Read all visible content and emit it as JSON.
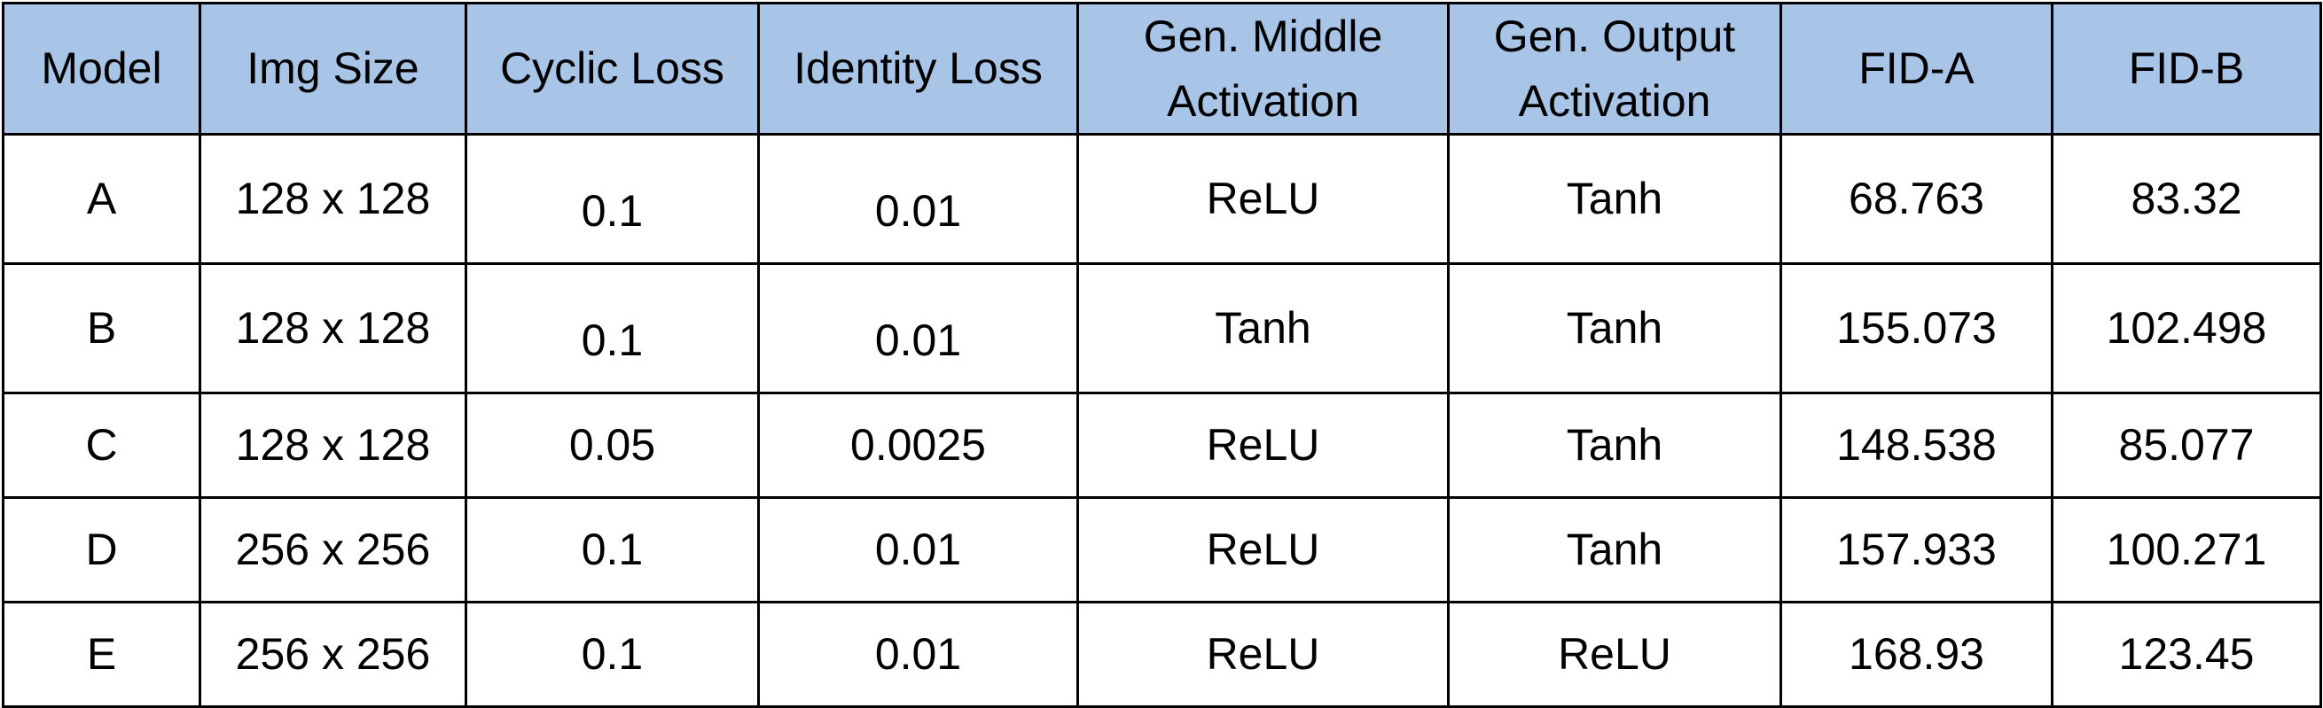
{
  "table": {
    "headers": [
      "Model",
      "Img Size",
      "Cyclic Loss",
      "Identity Loss",
      "Gen. Middle Activation",
      "Gen. Output Activation",
      "FID-A",
      "FID-B"
    ],
    "rows": [
      [
        "A",
        "128 x 128",
        "0.1",
        "0.01",
        "ReLU",
        "Tanh",
        "68.763",
        "83.32"
      ],
      [
        "B",
        "128 x 128",
        "0.1",
        "0.01",
        "Tanh",
        "Tanh",
        "155.073",
        "102.498"
      ],
      [
        "C",
        "128 x 128",
        "0.05",
        "0.0025",
        "ReLU",
        "Tanh",
        "148.538",
        "85.077"
      ],
      [
        "D",
        "256 x 256",
        "0.1",
        "0.01",
        "ReLU",
        "Tanh",
        "157.933",
        "100.271"
      ],
      [
        "E",
        "256 x 256",
        "0.1",
        "0.01",
        "ReLU",
        "ReLU",
        "168.93",
        "123.45"
      ]
    ]
  },
  "colors": {
    "header_background": "#a8c4e6",
    "border": "#000000",
    "text": "#000000"
  }
}
